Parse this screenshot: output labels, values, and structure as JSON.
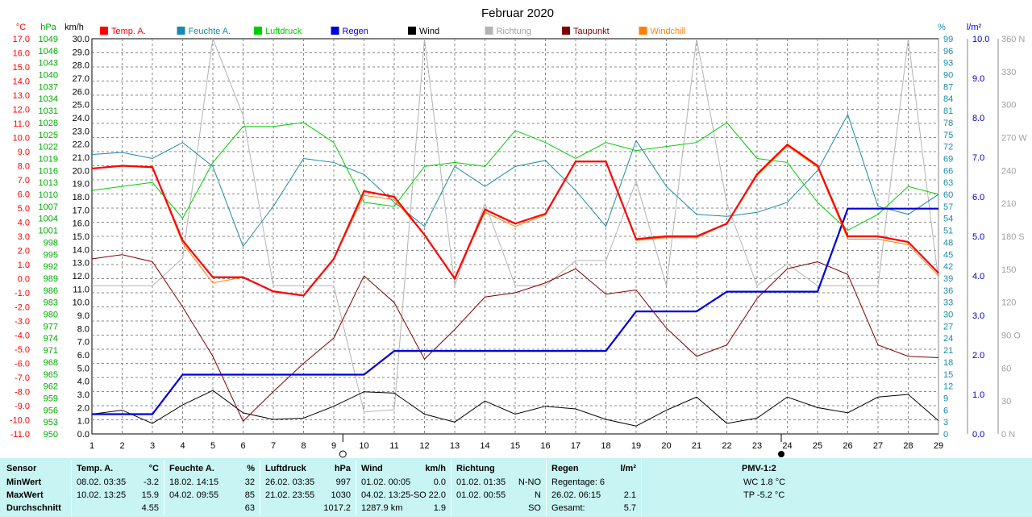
{
  "chart_data": {
    "type": "line",
    "title": "Februar 2020",
    "x": [
      1,
      2,
      3,
      4,
      5,
      6,
      7,
      8,
      9,
      10,
      11,
      12,
      13,
      14,
      15,
      16,
      17,
      18,
      19,
      20,
      21,
      22,
      23,
      24,
      25,
      26,
      27,
      28,
      29
    ],
    "xlim": [
      1,
      29
    ],
    "axes": {
      "temp": {
        "unit": "°C",
        "min": -11.0,
        "max": 17.0,
        "step": 1.0,
        "color": "#ff0000"
      },
      "pressure": {
        "unit": "hPa",
        "min": 950,
        "max": 1049,
        "step": 3,
        "color": "#00cc00"
      },
      "wind": {
        "unit": "km/h",
        "min": 0.0,
        "max": 30.0,
        "step": 1.0,
        "color": "#000000"
      },
      "humidity": {
        "unit": "%",
        "min": 0,
        "max": 99,
        "step": 3,
        "color": "#1a8aa8"
      },
      "rain": {
        "unit": "l/m²",
        "min": 0.0,
        "max": 10.0,
        "step": 1.0,
        "color": "#0000cc"
      },
      "direction": {
        "unit": "",
        "min": 0,
        "max": 360,
        "step": 30,
        "color": "#a0a0a0"
      }
    },
    "direction_labels": {
      "0": "0 N",
      "90": "90 O",
      "180": "180 S",
      "270": "270 W",
      "360": "360 N"
    },
    "grid": true,
    "legend_position": "top",
    "series": [
      {
        "name": "Temp. A.",
        "axis": "temp",
        "color": "#ff0000",
        "width": 2.2,
        "values": [
          7.8,
          8.0,
          7.9,
          2.7,
          0.1,
          0.1,
          -0.9,
          -1.2,
          1.4,
          6.2,
          5.8,
          3.1,
          0.0,
          4.9,
          3.9,
          4.6,
          8.3,
          8.3,
          2.8,
          3.0,
          3.0,
          3.9,
          7.4,
          9.5,
          8.0,
          3.0,
          3.0,
          2.6,
          0.4
        ]
      },
      {
        "name": "Feuchte A.",
        "axis": "humidity",
        "color": "#1a8aa8",
        "width": 1,
        "values": [
          70,
          70.5,
          69,
          73,
          67,
          47,
          57,
          69,
          68,
          65,
          58,
          52,
          67,
          62,
          67,
          68.5,
          61,
          52,
          73.5,
          62,
          55,
          54.5,
          55.5,
          58,
          66,
          80,
          57,
          55,
          60
        ]
      },
      {
        "name": "Luftdruck",
        "axis": "pressure",
        "color": "#00cc00",
        "width": 1,
        "values": [
          1011,
          1012,
          1013,
          1004,
          1018,
          1027,
          1027,
          1028,
          1023,
          1008,
          1007,
          1017,
          1018,
          1017,
          1026,
          1023,
          1019,
          1023,
          1021,
          1022,
          1023,
          1028,
          1019,
          1018,
          1008,
          1001,
          1005,
          1012,
          1010
        ]
      },
      {
        "name": "Regen",
        "axis": "rain",
        "color": "#0000dd",
        "width": 2.2,
        "values": [
          0.5,
          0.5,
          0.5,
          1.5,
          1.5,
          1.5,
          1.5,
          1.5,
          1.5,
          1.5,
          2.1,
          2.1,
          2.1,
          2.1,
          2.1,
          2.1,
          2.1,
          2.1,
          3.1,
          3.1,
          3.1,
          3.6,
          3.6,
          3.6,
          3.6,
          5.7,
          5.7,
          5.7,
          5.7
        ]
      },
      {
        "name": "Wind",
        "axis": "wind",
        "color": "#000000",
        "width": 1,
        "values": [
          1.5,
          1.8,
          0.8,
          2.2,
          3.3,
          1.6,
          1.1,
          1.2,
          2.1,
          3.2,
          3.1,
          1.5,
          0.9,
          2.5,
          1.5,
          2.1,
          1.9,
          1.1,
          0.6,
          1.8,
          2.8,
          0.8,
          1.2,
          2.8,
          2.0,
          1.6,
          2.8,
          3.0,
          1.0
        ]
      },
      {
        "name": "Richtung",
        "axis": "direction",
        "color": "#b4b4b4",
        "width": 1,
        "values": [
          135,
          135,
          135,
          160,
          360,
          290,
          135,
          135,
          135,
          20,
          22,
          360,
          135,
          210,
          135,
          135,
          158,
          158,
          230,
          135,
          360,
          210,
          135,
          155,
          135,
          135,
          135,
          360,
          140
        ]
      },
      {
        "name": "Taupunkt",
        "axis": "temp",
        "color": "#800000",
        "width": 1,
        "values": [
          1.4,
          1.7,
          1.2,
          -2.0,
          -5.5,
          -10.1,
          -8.0,
          -6.0,
          -4.2,
          0.2,
          -1.7,
          -5.7,
          -3.6,
          -1.3,
          -1.0,
          -0.3,
          0.7,
          -1.1,
          -0.8,
          -3.5,
          -5.5,
          -4.7,
          -1.4,
          0.7,
          1.2,
          0.3,
          -4.7,
          -5.5,
          -5.6
        ]
      },
      {
        "name": "Windchill",
        "axis": "temp",
        "color": "#ff8000",
        "width": 1,
        "values": [
          7.8,
          8.0,
          7.9,
          2.5,
          -0.3,
          0.1,
          -0.9,
          -1.2,
          1.4,
          5.9,
          5.6,
          3.1,
          0.0,
          4.7,
          3.7,
          4.5,
          8.3,
          8.3,
          2.7,
          2.9,
          2.9,
          3.9,
          7.3,
          9.4,
          7.9,
          2.8,
          2.8,
          2.4,
          0.2
        ]
      }
    ],
    "markers": [
      {
        "day": 9.3,
        "symbol": "first-quarter-moon"
      },
      {
        "day": 23.8,
        "symbol": "new-moon"
      }
    ]
  },
  "stats": {
    "sensor": {
      "title": "Sensor",
      "rows": [
        "MinWert",
        "MaxWert",
        "Durchschnitt"
      ]
    },
    "temp": {
      "title": "Temp. A.",
      "unit": "°C",
      "min_date": "08.02. 03:35",
      "min": "-3.2",
      "max_date": "10.02. 13:25",
      "max": "15.9",
      "avg": "4.55"
    },
    "humidity": {
      "title": "Feuchte A.",
      "unit": "%",
      "min_date": "18.02. 14:15",
      "min": "32",
      "max_date": "04.02. 09:55",
      "max": "85",
      "avg": "63"
    },
    "pressure": {
      "title": "Luftdruck",
      "unit": "hPa",
      "min_date": "26.02. 03:35",
      "min": "997",
      "max_date": "21.02. 23:55",
      "max": "1030",
      "avg": "1017.2"
    },
    "wind": {
      "title": "Wind",
      "unit": "km/h",
      "min_date": "01.02. 00:05",
      "min": "0.0",
      "max_date": "04.02. 13:25-SO",
      "max": "22.0",
      "avg_left": "1287.9 km",
      "avg": "1.9"
    },
    "direction": {
      "title": "Richtung",
      "min_date": "01.02. 01:35",
      "min": "N-NO",
      "max_date": "01.02. 00:55",
      "max": "N",
      "avg": "SO"
    },
    "rain": {
      "title": "Regen",
      "unit": "l/m²",
      "days": "Regentage: 6",
      "max_date": "26.02. 06:15",
      "max": "2.1",
      "total_label": "Gesamt:",
      "total": "5.7"
    },
    "pmv": {
      "title": "PMV-1:2",
      "wc": "WC 1.8 °C",
      "tp": "TP -5.2 °C"
    }
  }
}
